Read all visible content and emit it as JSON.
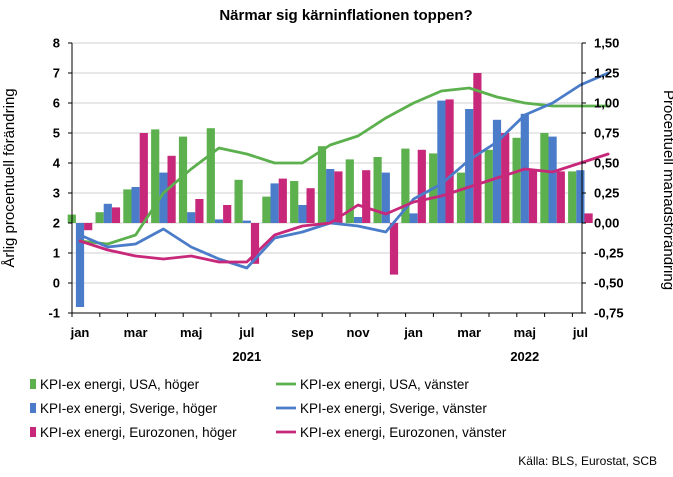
{
  "chart_data": {
    "type": "bar+line",
    "title": "Närmar sig kärninflationen toppen?",
    "ylabel_left": "Årlig procentuell förändring",
    "ylabel_right": "Procentuell månadsförändring",
    "source": "Källa: BLS, Eurostat, SCB",
    "ylim_left": [
      -1,
      8
    ],
    "ylim_right": [
      -0.75,
      1.5
    ],
    "left_ticks": [
      "-1",
      "0",
      "1",
      "2",
      "3",
      "4",
      "5",
      "6",
      "7",
      "8"
    ],
    "right_ticks": [
      "-0,75",
      "-0,50",
      "-0,25",
      "0,00",
      "0,25",
      "0,50",
      "0,75",
      "1,00",
      "1,25",
      "1,50"
    ],
    "month_labels": [
      "jan",
      "mar",
      "maj",
      "jul",
      "sep",
      "nov",
      "jan",
      "mar",
      "maj",
      "jul"
    ],
    "year_labels": [
      "2021",
      "2022"
    ],
    "x": [
      "2021-01",
      "2021-02",
      "2021-03",
      "2021-04",
      "2021-05",
      "2021-06",
      "2021-07",
      "2021-08",
      "2021-09",
      "2021-10",
      "2021-11",
      "2021-12",
      "2022-01",
      "2022-02",
      "2022-03",
      "2022-04",
      "2022-05",
      "2022-06",
      "2022-07",
      "2022-08"
    ],
    "grid": true,
    "legend_position": "bottom",
    "series": [
      {
        "name": "KPI-ex energi, USA, höger",
        "kind": "bar",
        "axis": "right",
        "color": "#5cb04d",
        "values": [
          0.07,
          0.09,
          0.28,
          0.78,
          0.72,
          0.79,
          0.36,
          0.22,
          0.35,
          0.64,
          0.53,
          0.55,
          0.62,
          0.58,
          0.42,
          0.61,
          0.71,
          0.75,
          0.43,
          null
        ]
      },
      {
        "name": "KPI-ex energi, Sverige, höger",
        "kind": "bar",
        "axis": "right",
        "color": "#4a7cc9",
        "values": [
          -0.7,
          0.16,
          0.3,
          0.42,
          0.09,
          0.03,
          0.02,
          0.33,
          0.15,
          0.45,
          0.05,
          0.42,
          0.08,
          1.02,
          0.95,
          0.86,
          0.91,
          0.72,
          0.44,
          null
        ]
      },
      {
        "name": "KPI-ex energi, Eurozonen, höger",
        "kind": "bar",
        "axis": "right",
        "color": "#c8287a",
        "values": [
          -0.06,
          0.13,
          0.75,
          0.56,
          0.2,
          0.15,
          -0.34,
          0.37,
          0.29,
          0.43,
          0.44,
          -0.43,
          0.61,
          1.03,
          1.25,
          0.75,
          0.45,
          0.43,
          0.08,
          null
        ]
      },
      {
        "name": "KPI-ex energi, USA, vänster",
        "kind": "line",
        "axis": "left",
        "color": "#5cb04d",
        "values": [
          1.4,
          1.3,
          1.6,
          3.0,
          3.8,
          4.5,
          4.3,
          4.0,
          4.0,
          4.6,
          4.9,
          5.5,
          6.0,
          6.4,
          6.5,
          6.2,
          6.0,
          5.9,
          5.9,
          5.9
        ]
      },
      {
        "name": "KPI-ex energi, Sverige, vänster",
        "kind": "line",
        "axis": "left",
        "color": "#4a7cc9",
        "values": [
          1.6,
          1.2,
          1.3,
          1.8,
          1.2,
          0.8,
          0.5,
          1.5,
          1.7,
          2.0,
          1.9,
          1.7,
          2.8,
          3.3,
          4.1,
          4.7,
          5.6,
          6.0,
          6.6,
          7.0
        ]
      },
      {
        "name": "KPI-ex energi, Eurozonen, vänster",
        "kind": "line",
        "axis": "left",
        "color": "#c8287a",
        "values": [
          1.4,
          1.1,
          0.9,
          0.8,
          0.9,
          0.7,
          0.7,
          1.6,
          1.9,
          2.0,
          2.6,
          2.3,
          2.7,
          2.9,
          3.2,
          3.5,
          3.8,
          3.7,
          4.0,
          4.3
        ]
      }
    ]
  }
}
